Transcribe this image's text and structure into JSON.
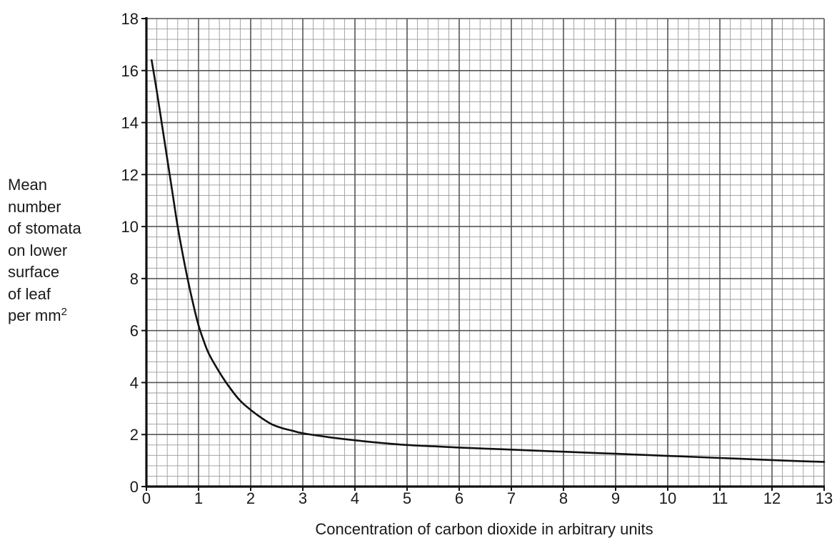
{
  "chart_data": {
    "type": "line",
    "xlabel": "Concentration of carbon dioxide in arbitrary units",
    "ylabel_lines": [
      "Mean",
      "number",
      "of stomata",
      "on lower",
      "surface",
      "of leaf",
      "per mm"
    ],
    "ylabel_superscript": "2",
    "xlim": [
      0,
      13
    ],
    "ylim": [
      0,
      18
    ],
    "x_ticks": [
      0,
      1,
      2,
      3,
      4,
      5,
      6,
      7,
      8,
      9,
      10,
      11,
      12,
      13
    ],
    "y_ticks": [
      0,
      2,
      4,
      6,
      8,
      10,
      12,
      14,
      16,
      18
    ],
    "grid": true,
    "series": [
      {
        "x": [
          0.1,
          0.2,
          0.3,
          0.4,
          0.5,
          0.6,
          0.7,
          0.8,
          0.9,
          1.0,
          1.1,
          1.2,
          1.4,
          1.6,
          1.8,
          2.0,
          2.2,
          2.4,
          2.6,
          2.8,
          3.0,
          3.5,
          4.0,
          4.5,
          5.0,
          5.5,
          6.0,
          6.5,
          7.0,
          7.5,
          8.0,
          8.5,
          9.0,
          9.5,
          10.0,
          10.5,
          11.0,
          11.5,
          12.0,
          12.5,
          13.0
        ],
        "y": [
          16.4,
          15.2,
          13.9,
          12.6,
          11.3,
          10.0,
          8.9,
          7.9,
          7.0,
          6.2,
          5.6,
          5.1,
          4.4,
          3.8,
          3.3,
          2.95,
          2.65,
          2.4,
          2.25,
          2.15,
          2.05,
          1.9,
          1.78,
          1.68,
          1.6,
          1.55,
          1.5,
          1.46,
          1.42,
          1.38,
          1.34,
          1.3,
          1.26,
          1.22,
          1.18,
          1.14,
          1.1,
          1.06,
          1.02,
          0.98,
          0.95
        ],
        "color": "#111111"
      }
    ]
  }
}
